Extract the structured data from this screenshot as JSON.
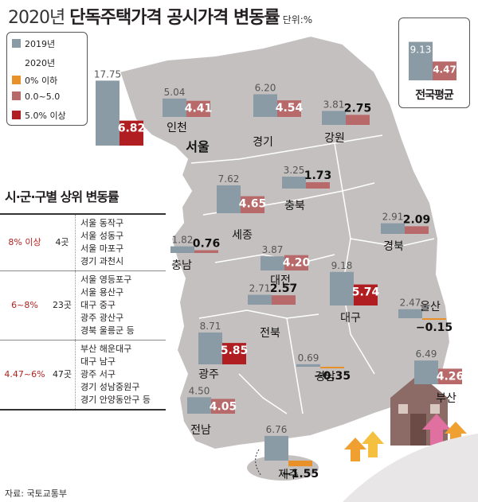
{
  "header": {
    "title_year": "2020년",
    "title_main": "단독주택가격 공시가격 변동률",
    "unit": "단위:%"
  },
  "legend": {
    "prev_year": "2019년",
    "cur_year": "2020년",
    "bands": [
      {
        "label": "0% 이하",
        "color": "#e8902a"
      },
      {
        "label": "0.0~5.0",
        "color": "#b86a6a"
      },
      {
        "label": "5.0% 이상",
        "color": "#b01e22"
      }
    ],
    "prev_color": "#8a9ba5"
  },
  "chart_data": {
    "type": "bar",
    "title": "2020년 단독주택가격 공시가격 변동률",
    "unit": "%",
    "series_names": [
      "2019년",
      "2020년"
    ],
    "regions": [
      {
        "name": "서울",
        "v2019": 17.75,
        "v2020": 6.82
      },
      {
        "name": "인천",
        "v2019": 5.04,
        "v2020": 4.41
      },
      {
        "name": "경기",
        "v2019": 6.2,
        "v2020": 4.54
      },
      {
        "name": "강원",
        "v2019": 3.81,
        "v2020": 2.75
      },
      {
        "name": "충북",
        "v2019": 3.25,
        "v2020": 1.73
      },
      {
        "name": "세종",
        "v2019": 7.62,
        "v2020": 4.65
      },
      {
        "name": "충남",
        "v2019": 1.82,
        "v2020": 0.76
      },
      {
        "name": "대전",
        "v2019": 3.87,
        "v2020": 4.2
      },
      {
        "name": "경북",
        "v2019": 2.91,
        "v2020": 2.09
      },
      {
        "name": "대구",
        "v2019": 9.18,
        "v2020": 5.74
      },
      {
        "name": "울산",
        "v2019": 2.47,
        "v2020": -0.15
      },
      {
        "name": "전북",
        "v2019": 2.71,
        "v2020": 2.57
      },
      {
        "name": "광주",
        "v2019": 8.71,
        "v2020": 5.85
      },
      {
        "name": "경남",
        "v2019": 0.69,
        "v2020": -0.35
      },
      {
        "name": "부산",
        "v2019": 6.49,
        "v2020": 4.26
      },
      {
        "name": "전남",
        "v2019": 4.5,
        "v2020": 4.05
      },
      {
        "name": "제주",
        "v2019": 6.76,
        "v2020": -1.55
      }
    ],
    "national_average": {
      "name": "전국평균",
      "v2019": 9.13,
      "v2020": 4.47
    }
  },
  "ranking": {
    "title": "시·군·구별 상위 변동률",
    "rows": [
      {
        "band": "8% 이상",
        "count": "4곳",
        "list": "서울 동작구\n서울 성동구\n서울 마포구\n경기 과천시"
      },
      {
        "band": "6~8%",
        "count": "23곳",
        "list": "서울 영등포구\n서울 용산구\n대구 중구\n광주 광산구\n경북 울릉군 등"
      },
      {
        "band": "4.47~6%",
        "count": "47곳",
        "list": "부산 해운대구\n대구 남구\n광주 서구\n경기 성남중원구\n경기 안양동안구 등"
      }
    ]
  },
  "source": "자료: 국토교통부"
}
